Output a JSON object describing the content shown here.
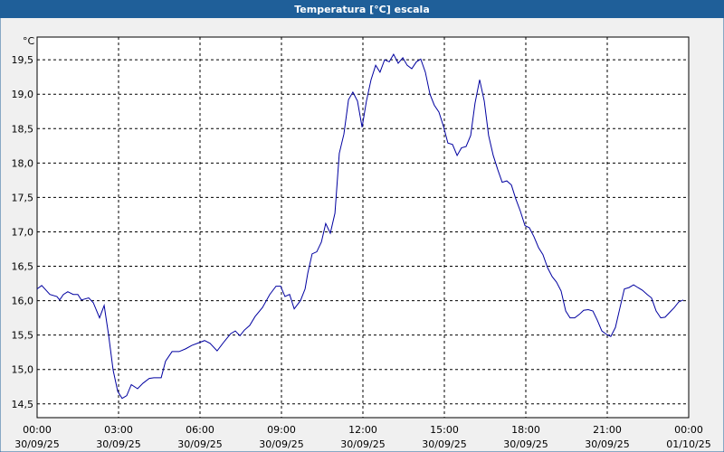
{
  "chart_data": {
    "type": "line",
    "title": "Temperatura [°C] escala",
    "unit": "°C",
    "color": "#0000a0",
    "grid": true,
    "xlim": [
      0,
      24
    ],
    "ylim": [
      14.3,
      19.83
    ],
    "xticks": [
      {
        "value": 0,
        "label": [
          "00:00",
          "30/09/25"
        ]
      },
      {
        "value": 3,
        "label": [
          "03:00",
          "30/09/25"
        ]
      },
      {
        "value": 6,
        "label": [
          "06:00",
          "30/09/25"
        ]
      },
      {
        "value": 9,
        "label": [
          "09:00",
          "30/09/25"
        ]
      },
      {
        "value": 12,
        "label": [
          "12:00",
          "30/09/25"
        ]
      },
      {
        "value": 15,
        "label": [
          "15:00",
          "30/09/25"
        ]
      },
      {
        "value": 18,
        "label": [
          "18:00",
          "30/09/25"
        ]
      },
      {
        "value": 21,
        "label": [
          "21:00",
          "30/09/25"
        ]
      },
      {
        "value": 24,
        "label": [
          "00:00",
          "01/10/25"
        ]
      }
    ],
    "yticks": [
      {
        "value": 14.5,
        "label": "14,5"
      },
      {
        "value": 15,
        "label": "15,0"
      },
      {
        "value": 15.5,
        "label": "15,5"
      },
      {
        "value": 16,
        "label": "16,0"
      },
      {
        "value": 16.5,
        "label": "16,5"
      },
      {
        "value": 17,
        "label": "17,0"
      },
      {
        "value": 17.5,
        "label": "17,5"
      },
      {
        "value": 18,
        "label": "18,0"
      },
      {
        "value": 18.5,
        "label": "18,5"
      },
      {
        "value": 19,
        "label": "19,0"
      },
      {
        "value": 19.5,
        "label": "19,5"
      }
    ],
    "x": [
      0,
      0.17,
      0.47,
      0.73,
      0.83,
      0.97,
      1.13,
      1.33,
      1.5,
      1.63,
      1.9,
      2.07,
      2.3,
      2.47,
      2.63,
      2.8,
      2.97,
      3.13,
      3.3,
      3.47,
      3.7,
      3.9,
      4.13,
      4.3,
      4.57,
      4.73,
      4.97,
      5.23,
      5.47,
      5.7,
      5.97,
      6.17,
      6.37,
      6.63,
      6.9,
      7.13,
      7.3,
      7.47,
      7.63,
      7.83,
      8.03,
      8.3,
      8.57,
      8.8,
      8.97,
      9.13,
      9.3,
      9.47,
      9.7,
      9.87,
      9.97,
      10.13,
      10.3,
      10.47,
      10.63,
      10.8,
      10.97,
      11.13,
      11.3,
      11.47,
      11.63,
      11.8,
      11.97,
      12.13,
      12.3,
      12.47,
      12.63,
      12.8,
      12.97,
      13.13,
      13.3,
      13.47,
      13.63,
      13.8,
      13.97,
      14.13,
      14.3,
      14.47,
      14.63,
      14.8,
      14.97,
      15.13,
      15.3,
      15.47,
      15.63,
      15.8,
      15.97,
      16.13,
      16.3,
      16.47,
      16.63,
      16.8,
      16.97,
      17.13,
      17.3,
      17.47,
      17.63,
      17.8,
      17.97,
      18.13,
      18.3,
      18.47,
      18.63,
      18.8,
      18.97,
      19.13,
      19.3,
      19.47,
      19.63,
      19.8,
      19.97,
      20.13,
      20.3,
      20.47,
      20.63,
      20.8,
      20.97,
      21.13,
      21.3,
      21.47,
      21.63,
      21.8,
      21.97,
      22.13,
      22.3,
      22.47,
      22.63,
      22.8,
      22.97,
      23.13,
      23.3,
      23.47,
      23.63,
      23.8
    ],
    "values": [
      16.17,
      16.22,
      16.09,
      16.06,
      16.01,
      16.09,
      16.13,
      16.09,
      16.09,
      16.01,
      16.04,
      15.97,
      15.75,
      15.93,
      15.51,
      14.99,
      14.68,
      14.58,
      14.62,
      14.78,
      14.72,
      14.8,
      14.87,
      14.88,
      14.88,
      15.12,
      15.26,
      15.26,
      15.3,
      15.35,
      15.39,
      15.42,
      15.38,
      15.27,
      15.41,
      15.52,
      15.56,
      15.49,
      15.57,
      15.64,
      15.77,
      15.9,
      16.09,
      16.21,
      16.21,
      16.06,
      16.09,
      15.88,
      16.0,
      16.17,
      16.4,
      16.68,
      16.71,
      16.85,
      17.12,
      16.98,
      17.27,
      18.14,
      18.42,
      18.92,
      19.03,
      18.9,
      18.52,
      18.9,
      19.21,
      19.42,
      19.32,
      19.5,
      19.47,
      19.58,
      19.45,
      19.53,
      19.42,
      19.37,
      19.47,
      19.51,
      19.32,
      19.0,
      18.84,
      18.74,
      18.53,
      18.29,
      18.27,
      18.11,
      18.22,
      18.24,
      18.4,
      18.87,
      19.21,
      18.9,
      18.4,
      18.11,
      17.9,
      17.72,
      17.74,
      17.68,
      17.48,
      17.3,
      17.09,
      17.06,
      16.93,
      16.77,
      16.67,
      16.48,
      16.35,
      16.27,
      16.14,
      15.85,
      15.75,
      15.75,
      15.8,
      15.86,
      15.87,
      15.85,
      15.72,
      15.56,
      15.51,
      15.48,
      15.61,
      15.9,
      16.17,
      16.19,
      16.23,
      16.19,
      16.15,
      16.09,
      16.04,
      15.85,
      15.75,
      15.76,
      15.83,
      15.9,
      15.98,
      16.01
    ]
  }
}
